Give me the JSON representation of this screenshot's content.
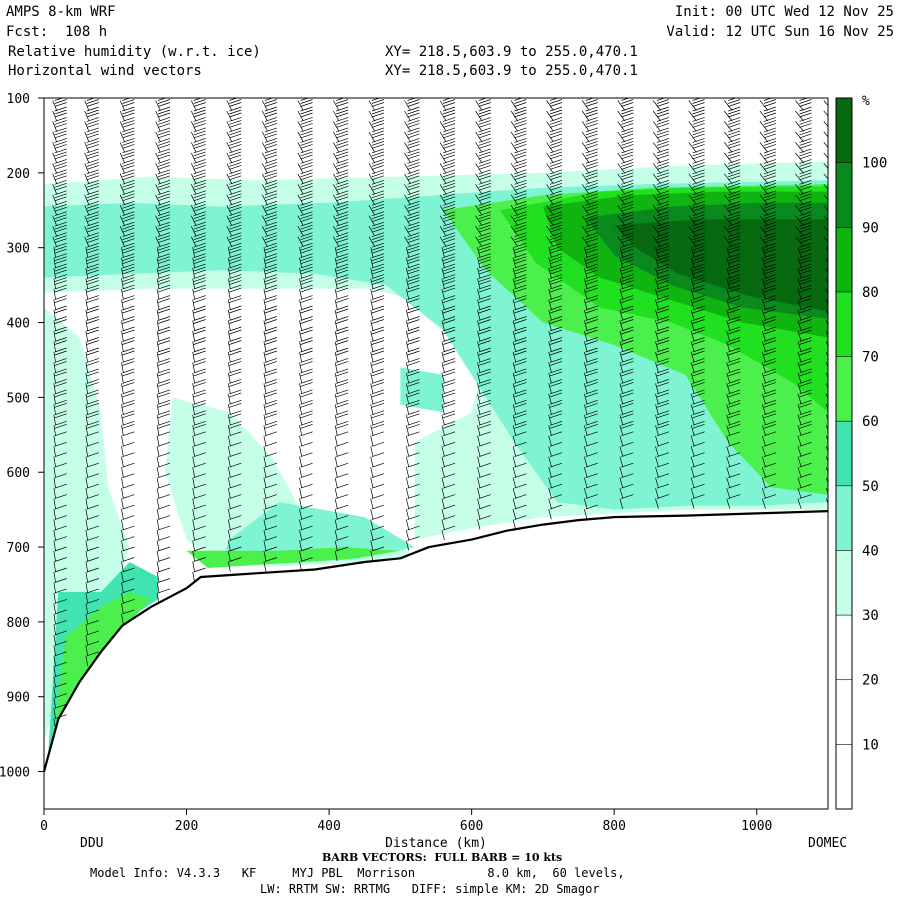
{
  "header": {
    "model": "AMPS 8-km WRF",
    "forecast": "Fcst:  108 h",
    "field1": "Relative humidity (w.r.t. ice)",
    "field2": "Horizontal wind vectors",
    "xy1": "XY= 218.5,603.9 to 255.0,470.1",
    "xy2": "XY= 218.5,603.9 to 255.0,470.1",
    "init": "Init: 00 UTC Wed 12 Nov 25",
    "valid": "Valid: 12 UTC Sun 16 Nov 25"
  },
  "chart_data": {
    "type": "heatmap",
    "title": "Relative humidity (w.r.t. ice)",
    "xlabel": "Distance (km)",
    "ylabel": "",
    "xlim": [
      0,
      1100
    ],
    "ylim": [
      1050,
      100
    ],
    "x_ticks": [
      0,
      200,
      400,
      600,
      800,
      1000
    ],
    "y_ticks": [
      100,
      200,
      300,
      400,
      500,
      600,
      700,
      800,
      900,
      1000
    ],
    "start_label": "DDU",
    "end_label": "DOMEC",
    "colorbar": {
      "unit": "%",
      "levels": [
        0,
        10,
        20,
        30,
        40,
        50,
        60,
        70,
        80,
        90,
        100,
        110
      ],
      "tick_labels": [
        10,
        20,
        30,
        40,
        50,
        60,
        70,
        80,
        90,
        100
      ],
      "colors": [
        "#ffffff",
        "#ffffff",
        "#ffffff",
        "#c6ffe8",
        "#7ff4d2",
        "#40e4b0",
        "#4cf04c",
        "#20e020",
        "#10b410",
        "#0a8a1e",
        "#086a10",
        "#3f5208"
      ]
    },
    "terrain_surface": [
      [
        0,
        1000
      ],
      [
        20,
        930
      ],
      [
        50,
        880
      ],
      [
        80,
        840
      ],
      [
        110,
        805
      ],
      [
        150,
        780
      ],
      [
        200,
        755
      ],
      [
        220,
        740
      ],
      [
        300,
        735
      ],
      [
        380,
        730
      ],
      [
        450,
        720
      ],
      [
        500,
        715
      ],
      [
        540,
        700
      ],
      [
        600,
        690
      ],
      [
        650,
        678
      ],
      [
        700,
        670
      ],
      [
        750,
        664
      ],
      [
        800,
        660
      ],
      [
        900,
        658
      ],
      [
        1000,
        655
      ],
      [
        1100,
        652
      ]
    ],
    "humidity_regions": [
      {
        "level": 30,
        "points": [
          [
            0,
            215
          ],
          [
            150,
            205
          ],
          [
            300,
            210
          ],
          [
            500,
            205
          ],
          [
            700,
            200
          ],
          [
            900,
            190
          ],
          [
            1100,
            185
          ],
          [
            1100,
            650
          ],
          [
            1000,
            650
          ],
          [
            900,
            650
          ],
          [
            800,
            655
          ],
          [
            700,
            660
          ],
          [
            600,
            675
          ],
          [
            520,
            690
          ],
          [
            520,
            560
          ],
          [
            600,
            520
          ],
          [
            620,
            440
          ],
          [
            560,
            380
          ],
          [
            460,
            355
          ],
          [
            300,
            355
          ],
          [
            150,
            355
          ],
          [
            0,
            360
          ],
          [
            0,
            300
          ]
        ]
      },
      {
        "level": 30,
        "points": [
          [
            0,
            380
          ],
          [
            50,
            420
          ],
          [
            80,
            520
          ],
          [
            90,
            620
          ],
          [
            120,
            700
          ],
          [
            100,
            760
          ],
          [
            60,
            810
          ],
          [
            30,
            870
          ],
          [
            0,
            960
          ]
        ]
      },
      {
        "level": 30,
        "points": [
          [
            180,
            500
          ],
          [
            260,
            520
          ],
          [
            320,
            580
          ],
          [
            360,
            650
          ],
          [
            480,
            690
          ],
          [
            520,
            712
          ],
          [
            420,
            722
          ],
          [
            320,
            726
          ],
          [
            240,
            720
          ],
          [
            200,
            690
          ],
          [
            170,
            600
          ]
        ]
      },
      {
        "level": 40,
        "points": [
          [
            0,
            245
          ],
          [
            120,
            240
          ],
          [
            250,
            245
          ],
          [
            400,
            240
          ],
          [
            550,
            230
          ],
          [
            700,
            220
          ],
          [
            850,
            215
          ],
          [
            1100,
            210
          ],
          [
            1100,
            640
          ],
          [
            1000,
            645
          ],
          [
            900,
            645
          ],
          [
            800,
            650
          ],
          [
            720,
            640
          ],
          [
            660,
            560
          ],
          [
            600,
            470
          ],
          [
            560,
            410
          ],
          [
            480,
            350
          ],
          [
            380,
            335
          ],
          [
            250,
            330
          ],
          [
            120,
            335
          ],
          [
            0,
            340
          ]
        ]
      },
      {
        "level": 40,
        "points": [
          [
            500,
            460
          ],
          [
            560,
            470
          ],
          [
            560,
            520
          ],
          [
            500,
            510
          ]
        ]
      },
      {
        "level": 40,
        "points": [
          [
            330,
            640
          ],
          [
            450,
            660
          ],
          [
            520,
            700
          ],
          [
            440,
            716
          ],
          [
            340,
            722
          ],
          [
            250,
            716
          ],
          [
            260,
            690
          ]
        ]
      },
      {
        "level": 50,
        "points": [
          [
            20,
            760
          ],
          [
            80,
            760
          ],
          [
            120,
            720
          ],
          [
            160,
            740
          ],
          [
            160,
            770
          ],
          [
            110,
            800
          ],
          [
            60,
            860
          ],
          [
            20,
            930
          ],
          [
            5,
            990
          ]
        ]
      },
      {
        "level": 60,
        "points": [
          [
            560,
            250
          ],
          [
            700,
            230
          ],
          [
            850,
            220
          ],
          [
            1100,
            215
          ],
          [
            1100,
            630
          ],
          [
            1020,
            620
          ],
          [
            960,
            560
          ],
          [
            900,
            470
          ],
          [
            800,
            430
          ],
          [
            700,
            400
          ],
          [
            620,
            330
          ]
        ]
      },
      {
        "level": 60,
        "points": [
          [
            200,
            705
          ],
          [
            330,
            705
          ],
          [
            420,
            700
          ],
          [
            500,
            705
          ],
          [
            430,
            716
          ],
          [
            330,
            722
          ],
          [
            230,
            728
          ]
        ]
      },
      {
        "level": 60,
        "points": [
          [
            30,
            820
          ],
          [
            80,
            780
          ],
          [
            120,
            760
          ],
          [
            150,
            770
          ],
          [
            90,
            830
          ],
          [
            40,
            900
          ],
          [
            10,
            980
          ]
        ]
      },
      {
        "level": 70,
        "points": [
          [
            640,
            250
          ],
          [
            780,
            225
          ],
          [
            900,
            220
          ],
          [
            1100,
            218
          ],
          [
            1100,
            520
          ],
          [
            1050,
            480
          ],
          [
            960,
            430
          ],
          [
            880,
            400
          ],
          [
            780,
            380
          ],
          [
            690,
            320
          ]
        ]
      },
      {
        "level": 80,
        "points": [
          [
            700,
            245
          ],
          [
            820,
            230
          ],
          [
            950,
            225
          ],
          [
            1100,
            225
          ],
          [
            1100,
            420
          ],
          [
            980,
            400
          ],
          [
            880,
            370
          ],
          [
            780,
            340
          ],
          [
            720,
            300
          ]
        ]
      },
      {
        "level": 90,
        "points": [
          [
            760,
            260
          ],
          [
            880,
            245
          ],
          [
            1000,
            240
          ],
          [
            1100,
            240
          ],
          [
            1100,
            395
          ],
          [
            980,
            380
          ],
          [
            880,
            350
          ],
          [
            800,
            310
          ]
        ]
      },
      {
        "level": 100,
        "points": [
          [
            800,
            270
          ],
          [
            920,
            262
          ],
          [
            1100,
            262
          ],
          [
            1100,
            385
          ],
          [
            990,
            365
          ],
          [
            890,
            335
          ],
          [
            830,
            300
          ]
        ]
      }
    ],
    "wind_barbs": {
      "full_barb_kts": 10,
      "columns_x": [
        15,
        60,
        110,
        160,
        210,
        260,
        310,
        360,
        410,
        460,
        510,
        560,
        610,
        660,
        710,
        760,
        810,
        860,
        910,
        960,
        1010,
        1060,
        1100
      ],
      "note": "BARB VECTORS:  FULL BARB = 10 kts"
    }
  },
  "footer": {
    "barb_note": "BARB VECTORS:  FULL BARB = 10 kts",
    "model_info": "Model Info: V4.3.3   KF     MYJ PBL  Morrison          8.0 km,  60 levels,",
    "schemes": "LW: RRTM SW: RRTMG   DIFF: simple KM: 2D Smagor"
  }
}
